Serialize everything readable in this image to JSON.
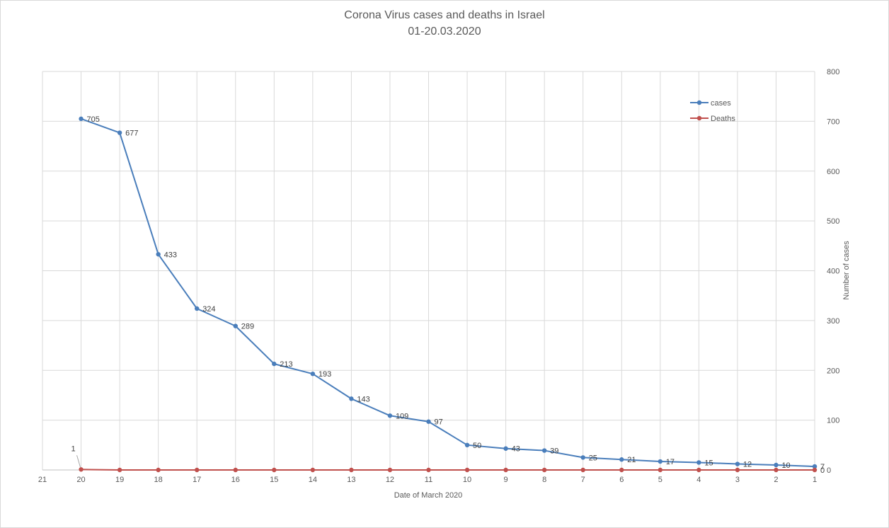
{
  "chart_data": {
    "type": "line",
    "title": "Corona Virus cases and deaths in  Israel",
    "subtitle": "01-20.03.2020",
    "xlabel": "Date of March 2020",
    "ylabel": "Number of cases",
    "x_tick_labels": [
      "21",
      "20",
      "19",
      "18",
      "17",
      "16",
      "15",
      "14",
      "13",
      "12",
      "11",
      "10",
      "9",
      "8",
      "7",
      "6",
      "5",
      "4",
      "3",
      "2",
      "1"
    ],
    "x_direction": "reversed",
    "x": [
      20,
      19,
      18,
      17,
      16,
      15,
      14,
      13,
      12,
      11,
      10,
      9,
      8,
      7,
      6,
      5,
      4,
      3,
      2,
      1
    ],
    "xlim": [
      1,
      21
    ],
    "ylim": [
      0,
      800
    ],
    "y_ticks": [
      0,
      100,
      200,
      300,
      400,
      500,
      600,
      700,
      800
    ],
    "y_axis_side": "right",
    "grid": true,
    "legend_position": "top-right",
    "series": [
      {
        "name": "cases",
        "color": "#4a7ebb",
        "values": [
          705,
          677,
          433,
          324,
          289,
          213,
          193,
          143,
          109,
          97,
          50,
          43,
          39,
          25,
          21,
          17,
          15,
          12,
          10,
          7
        ]
      },
      {
        "name": "Deaths",
        "color": "#c0504d",
        "values": [
          1,
          0,
          0,
          0,
          0,
          0,
          0,
          0,
          0,
          0,
          0,
          0,
          0,
          0,
          0,
          0,
          0,
          0,
          0,
          0
        ]
      }
    ],
    "annotations": [
      {
        "series": "Deaths",
        "x": 20,
        "text": "1"
      },
      {
        "series": "Deaths",
        "x": 1,
        "text": "0"
      }
    ]
  }
}
